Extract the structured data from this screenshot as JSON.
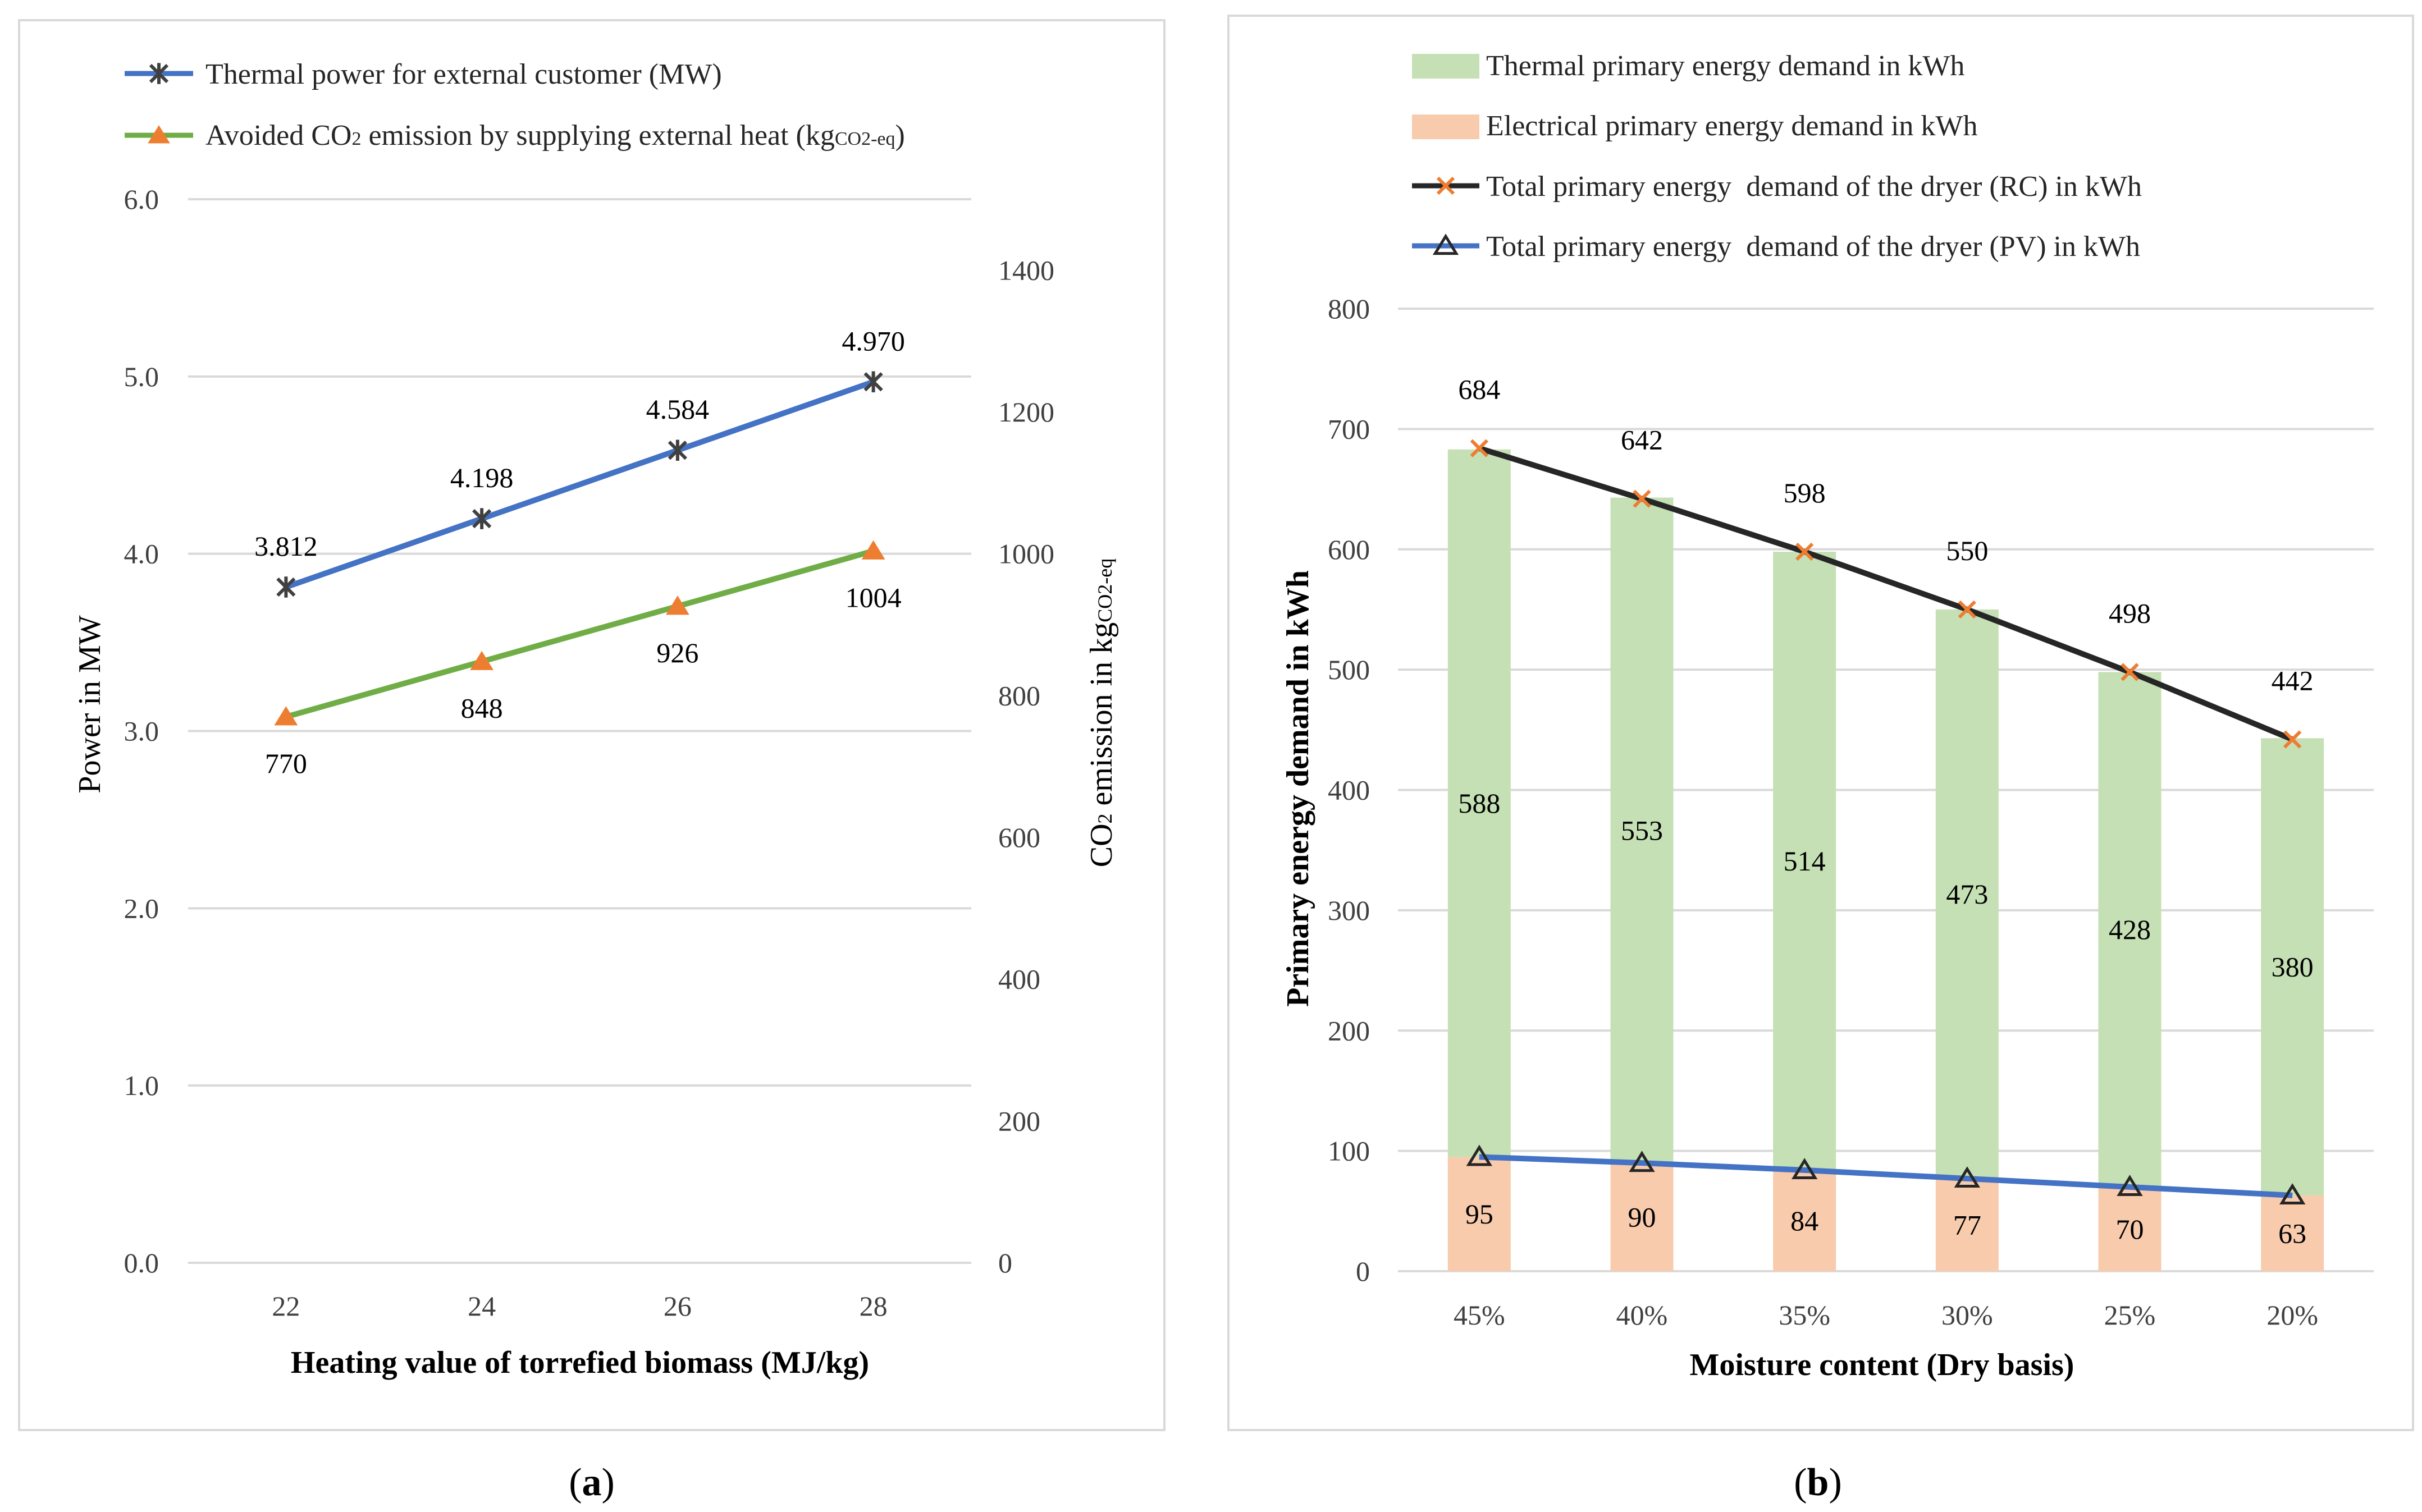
{
  "chart_data": [
    {
      "type": "line",
      "panel": "(a)",
      "caption_letter": "a",
      "xlabel": "Heating value of torrefied biomass (MJ/kg)",
      "ylabel": "Power in MW",
      "y2label_main": "CO",
      "y2label_sub2": "2",
      "y2label_rest": " emission in kg",
      "y2label_unit_sub": "CO2-eq",
      "categories": [
        "22",
        "24",
        "26",
        "28"
      ],
      "ylim": [
        0,
        6
      ],
      "y_ticks": [
        "0.0",
        "1.0",
        "2.0",
        "3.0",
        "4.0",
        "5.0",
        "6.0"
      ],
      "y2lim": [
        0,
        1500
      ],
      "y2_ticks": [
        "0",
        "200",
        "400",
        "600",
        "800",
        "1000",
        "1200",
        "1400"
      ],
      "series": [
        {
          "name": "Thermal power for external customer (MW)",
          "axis": "left",
          "color": "#4472C4",
          "marker": "star",
          "marker_color": "#404040",
          "values": [
            3.812,
            4.198,
            4.584,
            4.97
          ],
          "labels": [
            "3.812",
            "4.198",
            "4.584",
            "4.970"
          ]
        },
        {
          "name_main": "Avoided CO",
          "name_sub": "2",
          "name_rest": " emission by supplying external heat (kg",
          "name_unit_sub": "CO2-eq",
          "name_end": ")",
          "axis": "right",
          "color": "#70AD47",
          "marker": "triangle",
          "marker_color": "#ED7D31",
          "values": [
            770,
            848,
            926,
            1004
          ],
          "labels": [
            "770",
            "848",
            "926",
            "1004"
          ]
        }
      ]
    },
    {
      "type": "bar",
      "panel": "(b)",
      "caption_letter": "b",
      "stacked": true,
      "xlabel": "Moisture content (Dry basis)",
      "ylabel": "Primary energy demand in kWh",
      "categories": [
        "45%",
        "40%",
        "35%",
        "30%",
        "25%",
        "20%"
      ],
      "ylim": [
        0,
        800
      ],
      "y_ticks": [
        "0",
        "100",
        "200",
        "300",
        "400",
        "500",
        "600",
        "700",
        "800"
      ],
      "bar_series": [
        {
          "name": "Electrical primary energy demand in kWh",
          "color": "#F8CBAD",
          "values": [
            95,
            90,
            84,
            77,
            70,
            63
          ],
          "labels": [
            "95",
            "90",
            "84",
            "77",
            "70",
            "63"
          ]
        },
        {
          "name": "Thermal primary energy demand in kWh",
          "color": "#C5E0B4",
          "values": [
            588,
            553,
            514,
            473,
            428,
            380
          ],
          "labels": [
            "588",
            "553",
            "514",
            "473",
            "428",
            "380"
          ]
        }
      ],
      "line_series": [
        {
          "name": "Total primary energy  demand of the dryer (RC) in kWh",
          "color": "#262626",
          "marker": "x",
          "marker_color": "#ED7D31",
          "values": [
            684,
            642,
            598,
            550,
            498,
            442
          ],
          "labels": [
            "684",
            "642",
            "598",
            "550",
            "498",
            "442"
          ]
        },
        {
          "name": "Total primary energy  demand of the dryer (PV) in kWh",
          "color": "#4472C4",
          "marker": "triangle-open",
          "marker_color": "#262626",
          "values": [
            95,
            90,
            84,
            77,
            70,
            63
          ]
        }
      ]
    }
  ]
}
